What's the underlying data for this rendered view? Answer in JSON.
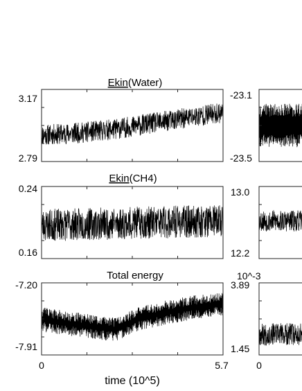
{
  "figure": {
    "xlabel": "time (10^5)",
    "x_tick_labels": [
      "0",
      "5.7"
    ],
    "right_x_tick_label": "0"
  },
  "chart_data": [
    {
      "type": "line",
      "title": "Ekin(Water)",
      "title_underlined": "Ekin",
      "title_rest": "(Water)",
      "xlim": [
        0,
        5.7
      ],
      "ylim": [
        2.79,
        3.17
      ],
      "y_tick_labels": [
        "3.17",
        "2.79"
      ],
      "series": [
        {
          "points": [
            [
              0,
              2.93
            ],
            [
              0.57,
              2.935
            ],
            [
              1.14,
              2.94
            ],
            [
              1.71,
              2.95
            ],
            [
              2.28,
              2.96
            ],
            [
              2.85,
              2.975
            ],
            [
              3.42,
              2.99
            ],
            [
              3.99,
              3.005
            ],
            [
              4.56,
              3.02
            ],
            [
              5.13,
              3.035
            ],
            [
              5.7,
              3.05
            ]
          ],
          "noise": 0.055
        }
      ]
    },
    {
      "type": "line",
      "title": "Ekin(CH4)",
      "title_underlined": "Ekin",
      "title_rest": "(CH4)",
      "xlim": [
        0,
        5.7
      ],
      "ylim": [
        0.16,
        0.24
      ],
      "y_tick_labels": [
        "0.24",
        "0.16"
      ],
      "series": [
        {
          "points": [
            [
              0,
              0.197
            ],
            [
              1.14,
              0.198
            ],
            [
              2.28,
              0.199
            ],
            [
              3.42,
              0.2
            ],
            [
              4.56,
              0.201
            ],
            [
              5.7,
              0.202
            ]
          ],
          "noise": 0.018
        }
      ]
    },
    {
      "type": "line",
      "title": "Total energy",
      "xlim": [
        0,
        5.7
      ],
      "ylim": [
        -7.91,
        -7.2
      ],
      "y_tick_labels": [
        "-7.20",
        "-7.91"
      ],
      "series": [
        {
          "points": [
            [
              0,
              -7.56
            ],
            [
              0.8,
              -7.6
            ],
            [
              1.6,
              -7.63
            ],
            [
              2.3,
              -7.66
            ],
            [
              3.0,
              -7.56
            ],
            [
              3.8,
              -7.5
            ],
            [
              4.6,
              -7.45
            ],
            [
              5.7,
              -7.4
            ]
          ],
          "noise": 0.12
        }
      ]
    },
    {
      "type": "line",
      "xlim": [
        0,
        5.7
      ],
      "ylim": [
        -23.5,
        -23.1
      ],
      "y_tick_labels": [
        "-23.1",
        "-23.5"
      ],
      "series": [
        {
          "points": [
            [
              0,
              -23.3
            ],
            [
              5.7,
              -23.3
            ]
          ],
          "noise": 0.12
        }
      ]
    },
    {
      "type": "line",
      "xlim": [
        0,
        5.7
      ],
      "ylim": [
        12.2,
        13.0
      ],
      "y_tick_labels": [
        "13.0",
        "12.2"
      ],
      "series": [
        {
          "points": [
            [
              0,
              12.62
            ],
            [
              5.7,
              12.6
            ]
          ],
          "noise": 0.12
        }
      ]
    },
    {
      "type": "line",
      "multiplier_label": "10^-3",
      "xlim": [
        0,
        5.7
      ],
      "ylim": [
        1.45,
        3.89
      ],
      "y_tick_labels": [
        "3.89",
        "1.45"
      ],
      "series": [
        {
          "points": [
            [
              0,
              2.15
            ],
            [
              5.7,
              2.15
            ]
          ],
          "noise": 0.38
        }
      ]
    }
  ]
}
